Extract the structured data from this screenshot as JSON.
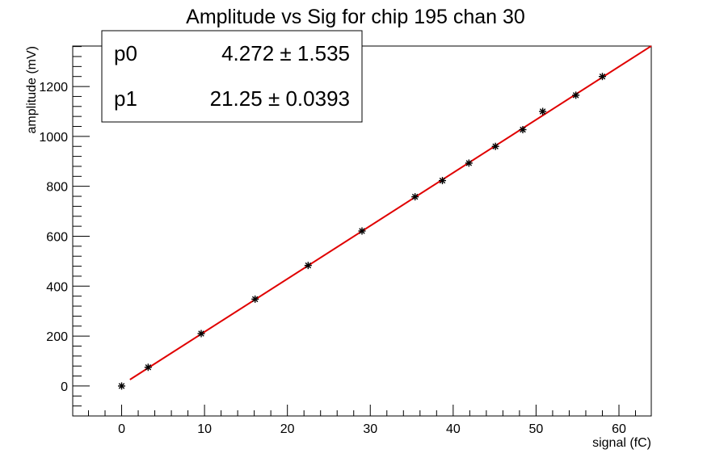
{
  "chart_data": {
    "type": "scatter",
    "title": "Amplitude vs Sig for chip 195 chan 30",
    "xlabel": "signal (fC)",
    "ylabel": "amplitude (mV)",
    "xlim": [
      -5.9,
      63.9
    ],
    "ylim": [
      -120,
      1362
    ],
    "xticks": [
      "0",
      "10",
      "20",
      "30",
      "40",
      "50",
      "60"
    ],
    "yticks": [
      "0",
      "200",
      "400",
      "600",
      "800",
      "1000",
      "1200"
    ],
    "series": [
      {
        "marker": "asterisk",
        "color": "#000000",
        "x": [
          0,
          3.2,
          9.6,
          16.1,
          22.5,
          29.0,
          35.4,
          38.7,
          41.9,
          45.1,
          48.4,
          50.8,
          54.8,
          58.0
        ],
        "y": [
          0,
          75,
          210,
          348,
          483,
          621,
          758,
          823,
          893,
          960,
          1027,
          1100,
          1165,
          1240
        ]
      }
    ],
    "fit": {
      "color": "#e00000",
      "x_range": [
        1.0,
        63.9
      ],
      "p0": 4.272,
      "p1": 21.25
    },
    "stats_box": {
      "placement": "top-left",
      "rows": [
        {
          "name": "p0",
          "value": "4.272",
          "pm": "±",
          "error": "1.535"
        },
        {
          "name": "p1",
          "value": "21.25",
          "pm": "±",
          "error": "0.0393"
        }
      ]
    },
    "grid": false
  }
}
